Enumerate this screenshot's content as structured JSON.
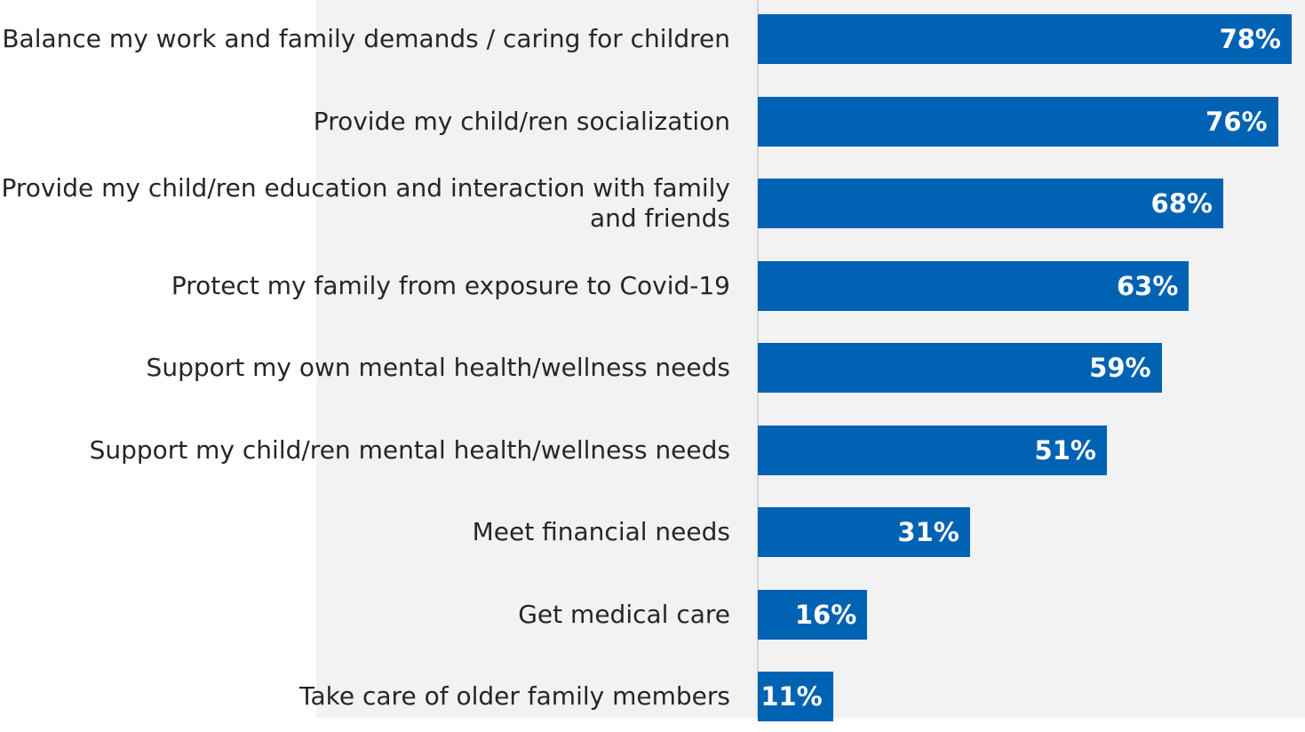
{
  "chart_data": {
    "type": "bar",
    "orientation": "horizontal",
    "categories": [
      "Balance my work and family demands / caring for children",
      "Provide my child/ren socialization",
      "Provide my child/ren education and interaction with family and friends",
      "Protect my family from exposure to Covid-19",
      "Support my own mental health/wellness needs",
      "Support my child/ren mental health/wellness needs",
      "Meet financial needs",
      "Get medical care",
      "Take care of older family members"
    ],
    "values": [
      78,
      76,
      68,
      63,
      59,
      51,
      31,
      16,
      11
    ],
    "data_labels": [
      "78%",
      "76%",
      "68%",
      "63%",
      "59%",
      "51%",
      "31%",
      "16%",
      "11%"
    ],
    "xlim": [
      0,
      78
    ],
    "grid": false,
    "legend": "none",
    "colors": {
      "bar": "#0062b3",
      "background": "#f2f2f2",
      "label": "#262626",
      "axis": "#d6d6d6"
    }
  }
}
